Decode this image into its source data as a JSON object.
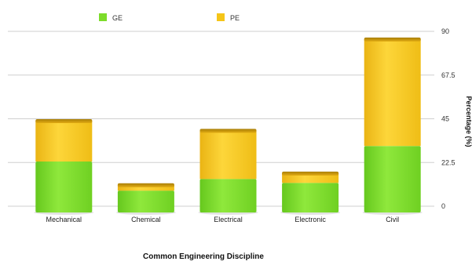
{
  "chart_data": {
    "type": "bar",
    "stacked": true,
    "categories": [
      "Mechanical",
      "Chemical",
      "Electrical",
      "Electronic",
      "Civil"
    ],
    "series": [
      {
        "name": "GE",
        "color": "#7ddc2a",
        "values": [
          23,
          8,
          14,
          12,
          31
        ]
      },
      {
        "name": "PE",
        "color": "#f5c518",
        "values": [
          21,
          3,
          25,
          5,
          55
        ]
      }
    ],
    "xlabel": "Common Engineering Discipline",
    "ylabel": "Percentage (%)",
    "yticks": [
      "0",
      "22.5",
      "45",
      "67.5",
      "90"
    ],
    "ylim": [
      0,
      90
    ],
    "legend_position": "top-left",
    "grid": true
  }
}
